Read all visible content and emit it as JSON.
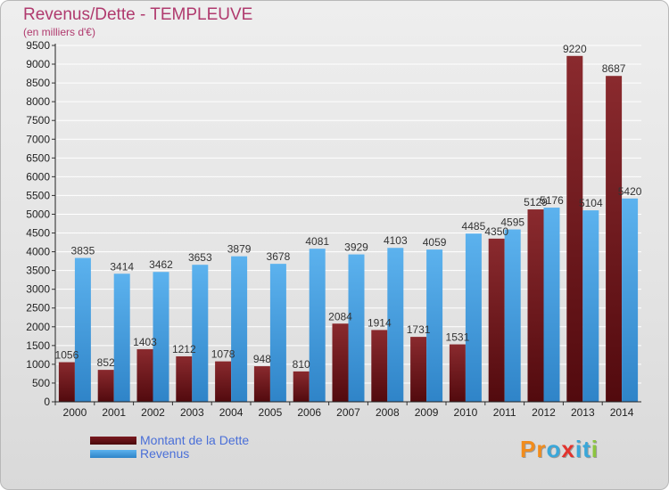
{
  "title": "Revenus/Dette - TEMPLEUVE",
  "subtitle": "(en milliers d'€)",
  "colors": {
    "dette": "#6b1116",
    "revenus": "#4aa3e6",
    "title": "#b03a6e",
    "legend_text": "#4a6fd8"
  },
  "legend": {
    "placement": "bottom-left",
    "dette": "Montant de la Dette",
    "revenus": "Revenus"
  },
  "logo": {
    "letters": [
      "P",
      "r",
      "o",
      "x",
      "i",
      "t",
      "i"
    ],
    "colors": [
      "#f28c1c",
      "#f28c1c",
      "#3aa7d9",
      "#e2332d",
      "#3aa7d9",
      "#3aa7d9",
      "#8cc63f"
    ]
  },
  "chart_data": {
    "type": "bar",
    "title": "Revenus/Dette - TEMPLEUVE",
    "subtitle": "(en milliers d'€)",
    "xlabel": "",
    "ylabel": "",
    "ylim": [
      0,
      9500
    ],
    "ytick_step": 500,
    "grid": "horizontal",
    "categories": [
      "2000",
      "2001",
      "2002",
      "2003",
      "2004",
      "2005",
      "2006",
      "2007",
      "2008",
      "2009",
      "2010",
      "2011",
      "2012",
      "2013",
      "2014"
    ],
    "series": [
      {
        "name": "Montant de la Dette",
        "values": [
          1056,
          852,
          1403,
          1212,
          1078,
          948,
          810,
          2084,
          1914,
          1731,
          1531,
          4350,
          5129,
          9220,
          8687
        ],
        "labels": [
          "1056",
          "852",
          "1403",
          "1212",
          "1078",
          "948",
          "810",
          "2084",
          "1914",
          "1731",
          "1531",
          "4350",
          "5129",
          "9220",
          "8687"
        ]
      },
      {
        "name": "Revenus",
        "values": [
          3835,
          3414,
          3462,
          3653,
          3879,
          3678,
          4081,
          3929,
          4103,
          4059,
          4485,
          4595,
          5176,
          5104,
          5420
        ],
        "labels": [
          "3835",
          "3414",
          "3462",
          "3653",
          "3879",
          "3678",
          "4081",
          "3929",
          "4103",
          "4059",
          "4485",
          "4595",
          "5176",
          "5104",
          "5420"
        ]
      }
    ]
  }
}
